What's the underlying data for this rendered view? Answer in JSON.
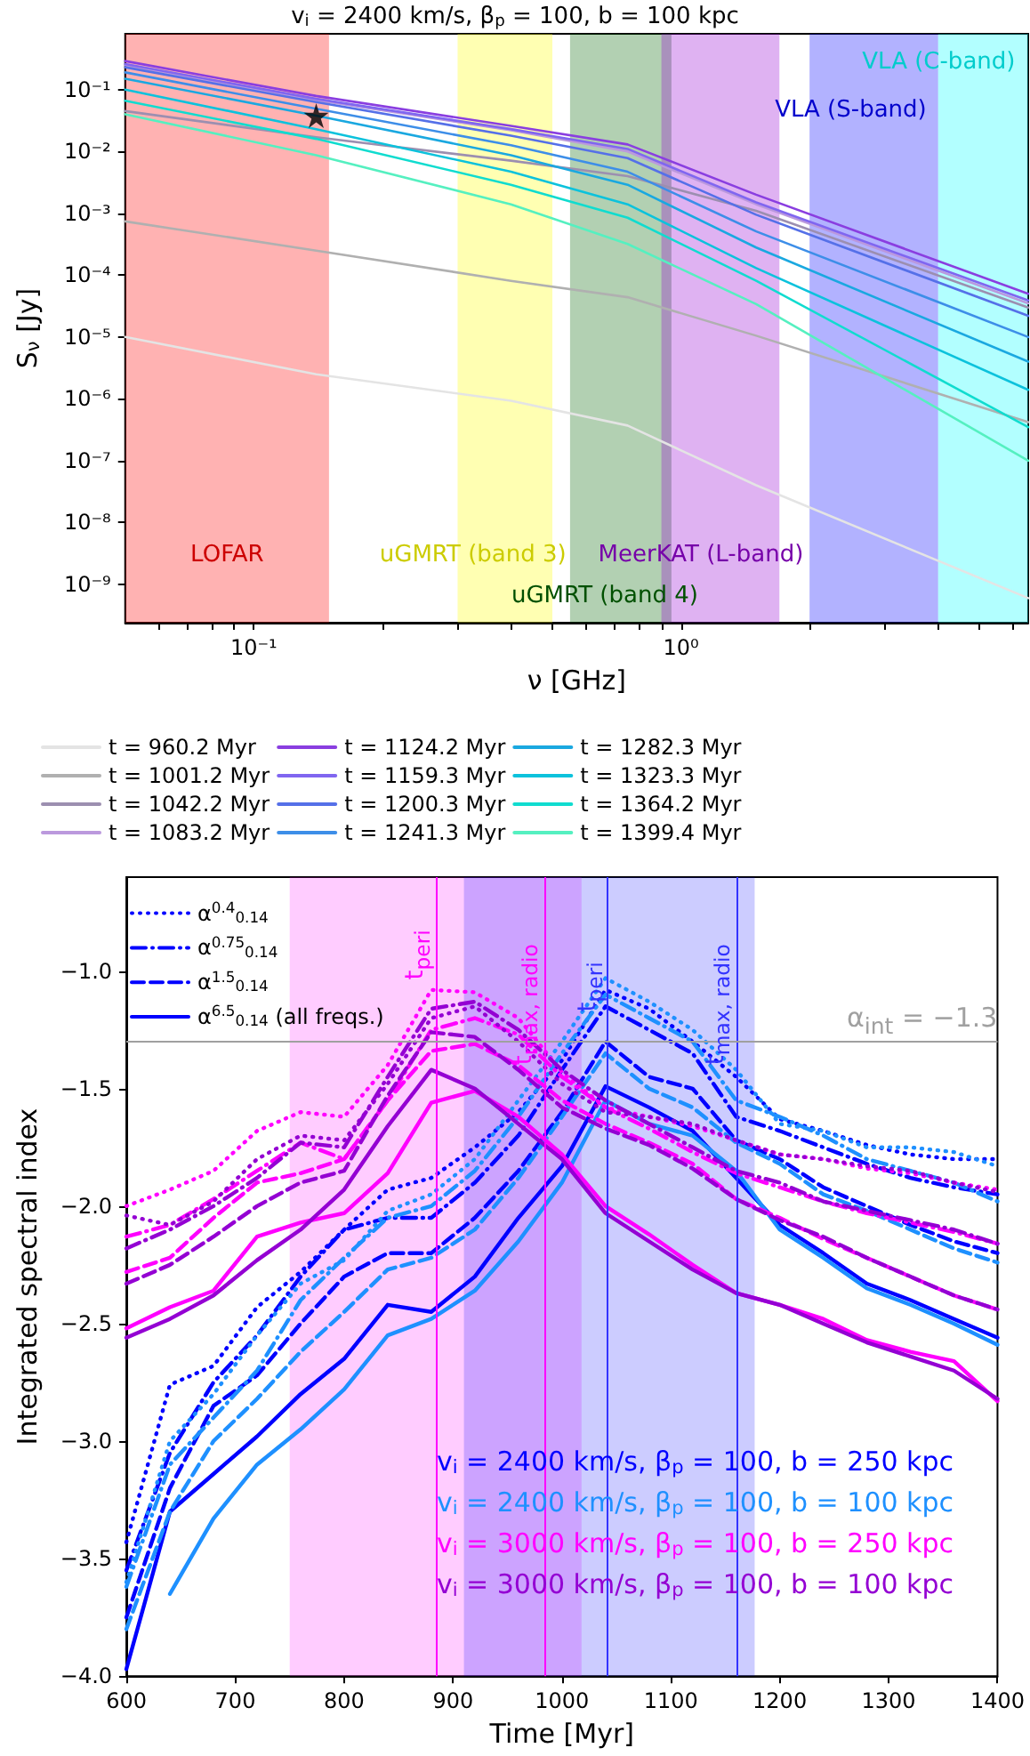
{
  "chart_data": [
    {
      "type": "line",
      "title": "v$_{i}$ = 2400 km/s, β$_{p}$ = 100, b = 100 kpc",
      "xlabel": "ν [GHz]",
      "ylabel": "S$_{ν}$ [Jy]",
      "log": "xy",
      "legend": "bottom",
      "x": [
        0.05,
        0.14,
        0.4,
        0.75,
        1.5,
        6.5
      ],
      "xlim": [
        0.05,
        6.5
      ],
      "ylim": [
        2.4e-10,
        0.8
      ],
      "xticks": [
        {
          "value": 0.06,
          "label": null
        },
        {
          "value": 0.07,
          "label": null
        },
        {
          "value": 0.08,
          "label": null
        },
        {
          "value": 0.09,
          "label": null
        },
        {
          "value": 0.1,
          "label": "10⁻¹"
        },
        {
          "value": 0.2,
          "label": null
        },
        {
          "value": 0.3,
          "label": null
        },
        {
          "value": 0.4,
          "label": null
        },
        {
          "value": 0.5,
          "label": null
        },
        {
          "value": 0.6,
          "label": null
        },
        {
          "value": 0.7,
          "label": null
        },
        {
          "value": 0.8,
          "label": null
        },
        {
          "value": 0.9,
          "label": null
        },
        {
          "value": 1,
          "label": "10⁰"
        },
        {
          "value": 2,
          "label": null
        },
        {
          "value": 3,
          "label": null
        },
        {
          "value": 4,
          "label": null
        },
        {
          "value": 5,
          "label": null
        },
        {
          "value": 6,
          "label": null
        }
      ],
      "yticks": [
        {
          "value": 0.1,
          "label": "10⁻¹"
        },
        {
          "value": 0.01,
          "label": "10⁻²"
        },
        {
          "value": 0.001,
          "label": "10⁻³"
        },
        {
          "value": 0.0001,
          "label": "10⁻⁴"
        },
        {
          "value": 1e-05,
          "label": "10⁻⁵"
        },
        {
          "value": 1e-06,
          "label": "10⁻⁶"
        },
        {
          "value": 1e-07,
          "label": "10⁻⁷"
        },
        {
          "value": 1e-08,
          "label": "10⁻⁸"
        },
        {
          "value": 1e-09,
          "label": "10⁻⁹"
        }
      ],
      "series": [
        {
          "name": "t = 960.2 Myr",
          "color": "#e4e4e4",
          "values": [
            1e-05,
            2.5e-06,
            9.3e-07,
            3.7e-07,
            4e-08,
            6e-10
          ]
        },
        {
          "name": "t = 1001.2 Myr",
          "color": "#b0b0b0",
          "values": [
            0.00074,
            0.00025,
            8.1e-05,
            4.4e-05,
            1.05e-05,
            4.2e-07
          ]
        },
        {
          "name": "t = 1042.2 Myr",
          "color": "#9c8fb0",
          "values": [
            0.045,
            0.017,
            0.0071,
            0.004,
            0.0011,
            3e-05
          ]
        },
        {
          "name": "t = 1083.2 Myr",
          "color": "#bb99dd",
          "values": [
            0.25,
            0.068,
            0.022,
            0.01,
            0.0014,
            3.5e-05
          ]
        },
        {
          "name": "t = 1124.2 Myr",
          "color": "#8a3ee0",
          "values": [
            0.29,
            0.079,
            0.026,
            0.013,
            0.002,
            5e-05
          ]
        },
        {
          "name": "t = 1159.3 Myr",
          "color": "#8066f0",
          "values": [
            0.26,
            0.071,
            0.023,
            0.011,
            0.0015,
            3.9e-05
          ]
        },
        {
          "name": "t = 1200.3 Myr",
          "color": "#5570e8",
          "values": [
            0.23,
            0.063,
            0.018,
            0.0078,
            0.00095,
            2.2e-05
          ]
        },
        {
          "name": "t = 1241.3 Myr",
          "color": "#3d8ee8",
          "values": [
            0.19,
            0.049,
            0.0126,
            0.0047,
            0.00051,
            1e-05
          ]
        },
        {
          "name": "t = 1282.3 Myr",
          "color": "#1aa8e0",
          "values": [
            0.15,
            0.038,
            0.0087,
            0.0029,
            0.00028,
            4e-06
          ]
        },
        {
          "name": "t = 1323.3 Myr",
          "color": "#0cc2dc",
          "values": [
            0.1,
            0.023,
            0.0047,
            0.0014,
            0.00013,
            1.4e-06
          ]
        },
        {
          "name": "t = 1364.2 Myr",
          "color": "#10dccf",
          "values": [
            0.066,
            0.016,
            0.0029,
            0.00085,
            8.1e-05,
            3.5e-07
          ]
        },
        {
          "name": "t = 1399.4 Myr",
          "color": "#55f0c0",
          "values": [
            0.04,
            0.0087,
            0.0014,
            0.00032,
            3.4e-05,
            1e-07
          ]
        },
        {
          "type": "scatter",
          "marker": "star",
          "color": "#000000",
          "x": [
            0.14
          ],
          "values": [
            0.038
          ]
        }
      ],
      "bands": [
        {
          "axis": "x",
          "from": 0.05,
          "to": 0.15,
          "label": "LOFAR",
          "color": "#ff0000"
        },
        {
          "axis": "x",
          "from": 0.3,
          "to": 0.5,
          "label": "uGMRT (band 3)",
          "color": "#ffff00"
        },
        {
          "axis": "x",
          "from": 0.55,
          "to": 0.95,
          "label": "uGMRT (band 4)",
          "color": "#006400"
        },
        {
          "axis": "x",
          "from": 0.9,
          "to": 1.7,
          "label": "MeerKAT (L-band)",
          "color": "#9400d3"
        },
        {
          "axis": "x",
          "from": 2,
          "to": 4,
          "label": "VLA (S-band)",
          "color": "#0000ff"
        },
        {
          "axis": "x",
          "from": 4,
          "to": 6.5,
          "label": "VLA (C-band)",
          "color": "#00ffff"
        }
      ]
    },
    {
      "type": "line",
      "xlabel": "Time [Myr]",
      "ylabel": "Integrated spectral index",
      "legend": "top left",
      "x": [
        600,
        640,
        680,
        720,
        760,
        800,
        840,
        880,
        920,
        960,
        1000,
        1040,
        1080,
        1120,
        1160,
        1200,
        1240,
        1280,
        1320,
        1360,
        1400
      ],
      "xlim": [
        600,
        1400
      ],
      "ylim": [
        -4.0,
        -0.6
      ],
      "xticks": [
        600,
        700,
        800,
        900,
        1000,
        1100,
        1200,
        1300,
        1400
      ],
      "yticks": [
        {
          "value": -4.0,
          "label": "−4.0"
        },
        {
          "value": -3.5,
          "label": "−3.5"
        },
        {
          "value": -3.0,
          "label": "−3.0"
        },
        {
          "value": -2.5,
          "label": "−2.5"
        },
        {
          "value": -2.0,
          "label": "−2.0"
        },
        {
          "value": -1.5,
          "label": "−1.5"
        },
        {
          "value": -1.0,
          "label": "−1.0"
        }
      ],
      "series": [
        {
          "name": "α$^{0.4}$$_{0.14}$",
          "color": "#0000ff",
          "line_style": "dotted",
          "values": [
            -3.43,
            -2.76,
            -2.68,
            -2.43,
            -2.28,
            -2.1,
            -1.93,
            -1.88,
            -1.75,
            -1.6,
            -1.38,
            -1.08,
            -1.16,
            -1.3,
            -1.45,
            -1.63,
            -1.68,
            -1.74,
            -1.78,
            -1.8,
            -1.8
          ]
        },
        {
          "name": "α$^{0.75}$$_{0.14}$",
          "color": "#0000ff",
          "line_style": "dashdot",
          "values": [
            -3.55,
            -3.05,
            -2.75,
            -2.55,
            -2.3,
            -2.1,
            -2.05,
            -2.05,
            -1.9,
            -1.7,
            -1.42,
            -1.15,
            -1.25,
            -1.35,
            -1.62,
            -1.68,
            -1.75,
            -1.82,
            -1.88,
            -1.92,
            -1.95
          ]
        },
        {
          "name": "α$^{1.5}$$_{0.14}$",
          "color": "#0000ff",
          "line_style": "dashed",
          "values": [
            -3.75,
            -3.2,
            -2.85,
            -2.72,
            -2.5,
            -2.3,
            -2.2,
            -2.2,
            -2.05,
            -1.85,
            -1.6,
            -1.3,
            -1.45,
            -1.5,
            -1.72,
            -1.8,
            -1.92,
            -2.0,
            -2.08,
            -2.15,
            -2.2
          ]
        },
        {
          "name": "α$^{6.5}$$_{0.14}$ (all freqs.)",
          "color": "#0000ff",
          "line_style": "solid",
          "values": [
            -3.97,
            -3.3,
            -3.14,
            -2.98,
            -2.8,
            -2.65,
            -2.42,
            -2.45,
            -2.3,
            -2.05,
            -1.83,
            -1.49,
            -1.58,
            -1.68,
            -1.88,
            -2.08,
            -2.2,
            -2.33,
            -2.4,
            -2.48,
            -2.56
          ]
        },
        {
          "color": "#1e90ff",
          "line_style": "dotted",
          "values": [
            -3.6,
            -3.0,
            -2.8,
            -2.55,
            -2.33,
            -2.23,
            -2.02,
            -1.95,
            -1.8,
            -1.55,
            -1.3,
            -1.03,
            -1.13,
            -1.25,
            -1.42,
            -1.65,
            -1.68,
            -1.75,
            -1.75,
            -1.77,
            -1.83
          ]
        },
        {
          "color": "#1e90ff",
          "line_style": "dashdot",
          "values": [
            -3.62,
            -3.1,
            -2.9,
            -2.7,
            -2.4,
            -2.22,
            -2.05,
            -2.0,
            -1.85,
            -1.62,
            -1.35,
            -1.1,
            -1.2,
            -1.3,
            -1.55,
            -1.62,
            -1.7,
            -1.8,
            -1.85,
            -1.9,
            -1.98
          ]
        },
        {
          "color": "#1e90ff",
          "line_style": "dashed",
          "values": [
            -3.8,
            -3.3,
            -3.0,
            -2.82,
            -2.62,
            -2.45,
            -2.27,
            -2.22,
            -2.1,
            -1.88,
            -1.62,
            -1.35,
            -1.5,
            -1.58,
            -1.73,
            -1.82,
            -1.95,
            -2.02,
            -2.1,
            -2.18,
            -2.24
          ]
        },
        {
          "color": "#1e90ff",
          "line_style": "solid",
          "values": [
            null,
            -3.65,
            -3.33,
            -3.1,
            -2.95,
            -2.78,
            -2.55,
            -2.48,
            -2.36,
            -2.15,
            -1.9,
            -1.55,
            -1.65,
            -1.7,
            -1.85,
            -2.1,
            -2.22,
            -2.35,
            -2.42,
            -2.5,
            -2.59
          ]
        },
        {
          "color": "#ff00ff",
          "line_style": "dotted",
          "values": [
            -2.0,
            -1.93,
            -1.85,
            -1.68,
            -1.6,
            -1.62,
            -1.4,
            -1.08,
            -1.09,
            -1.2,
            -1.43,
            -1.58,
            -1.62,
            -1.66,
            -1.72,
            -1.78,
            -1.8,
            -1.84,
            -1.86,
            -1.9,
            -1.93
          ]
        },
        {
          "color": "#ff00ff",
          "line_style": "dashdot",
          "values": [
            -2.13,
            -2.08,
            -1.97,
            -1.85,
            -1.73,
            -1.8,
            -1.55,
            -1.25,
            -1.2,
            -1.27,
            -1.45,
            -1.58,
            -1.67,
            -1.77,
            -1.86,
            -1.92,
            -1.98,
            -2.03,
            -2.07,
            -2.11,
            -2.16
          ]
        },
        {
          "color": "#ff00ff",
          "line_style": "dashed",
          "values": [
            -2.28,
            -2.22,
            -2.05,
            -1.9,
            -1.86,
            -1.8,
            -1.55,
            -1.34,
            -1.31,
            -1.4,
            -1.55,
            -1.65,
            -1.73,
            -1.82,
            -1.97,
            -2.05,
            -2.14,
            -2.22,
            -2.3,
            -2.38,
            -2.44
          ]
        },
        {
          "color": "#ff00ff",
          "line_style": "solid",
          "values": [
            -2.52,
            -2.43,
            -2.36,
            -2.13,
            -2.07,
            -2.03,
            -1.86,
            -1.56,
            -1.51,
            -1.62,
            -1.78,
            -2.0,
            -2.12,
            -2.25,
            -2.37,
            -2.42,
            -2.48,
            -2.57,
            -2.62,
            -2.66,
            -2.83
          ]
        },
        {
          "color": "#9400d3",
          "line_style": "dotted",
          "values": [
            -2.04,
            -2.08,
            -1.98,
            -1.8,
            -1.7,
            -1.72,
            -1.48,
            -1.2,
            -1.15,
            -1.3,
            -1.48,
            -1.6,
            -1.62,
            -1.65,
            -1.72,
            -1.78,
            -1.8,
            -1.83,
            -1.85,
            -1.9,
            -1.94
          ]
        },
        {
          "color": "#9400d3",
          "line_style": "dashdot",
          "values": [
            -2.18,
            -2.1,
            -2.0,
            -1.88,
            -1.73,
            -1.75,
            -1.45,
            -1.16,
            -1.13,
            -1.25,
            -1.42,
            -1.55,
            -1.65,
            -1.75,
            -1.85,
            -1.9,
            -1.98,
            -2.02,
            -2.06,
            -2.1,
            -2.16
          ]
        },
        {
          "color": "#9400d3",
          "line_style": "dashed",
          "values": [
            -2.33,
            -2.25,
            -2.13,
            -2.0,
            -1.9,
            -1.85,
            -1.53,
            -1.26,
            -1.28,
            -1.42,
            -1.58,
            -1.67,
            -1.74,
            -1.84,
            -1.97,
            -2.06,
            -2.13,
            -2.22,
            -2.3,
            -2.38,
            -2.44
          ]
        },
        {
          "color": "#9400d3",
          "line_style": "solid",
          "values": [
            -2.56,
            -2.48,
            -2.38,
            -2.23,
            -2.1,
            -1.93,
            -1.66,
            -1.42,
            -1.5,
            -1.65,
            -1.8,
            -2.03,
            -2.15,
            -2.27,
            -2.37,
            -2.42,
            -2.5,
            -2.58,
            -2.64,
            -2.7,
            -2.82
          ]
        }
      ],
      "bands": [
        {
          "axis": "x",
          "from": 750,
          "to": 1018,
          "color": "#ff00ff"
        },
        {
          "axis": "x",
          "from": 910,
          "to": 1177,
          "color": "#0000ff"
        }
      ],
      "ref_lines": [
        {
          "axis": "x",
          "value": 884,
          "label": "t$_{peri}$",
          "color": "#ff00ff"
        },
        {
          "axis": "x",
          "value": 984,
          "label": "t$_{max, radio}$",
          "color": "#ff00ff"
        },
        {
          "axis": "x",
          "value": 1042,
          "label": "t$_{peri}$",
          "color": "#3333ff"
        },
        {
          "axis": "x",
          "value": 1160,
          "label": "t$_{max, radio}$",
          "color": "#3333ff"
        },
        {
          "axis": "y",
          "value": -1.3,
          "label": "α$_{int}$ = −1.3",
          "color": "#a0a0a0"
        }
      ],
      "annotations": [
        "v$_{i}$ = 2400 km/s, β$_{p}$ = 100, b = 250 kpc",
        "v$_{i}$ = 2400 km/s, β$_{p}$ = 100, b = 100 kpc",
        "v$_{i}$ = 3000 km/s, β$_{p}$ = 100, b = 250 kpc",
        "v$_{i}$ = 3000 km/s, β$_{p}$ = 100, b = 100 kpc"
      ]
    }
  ]
}
